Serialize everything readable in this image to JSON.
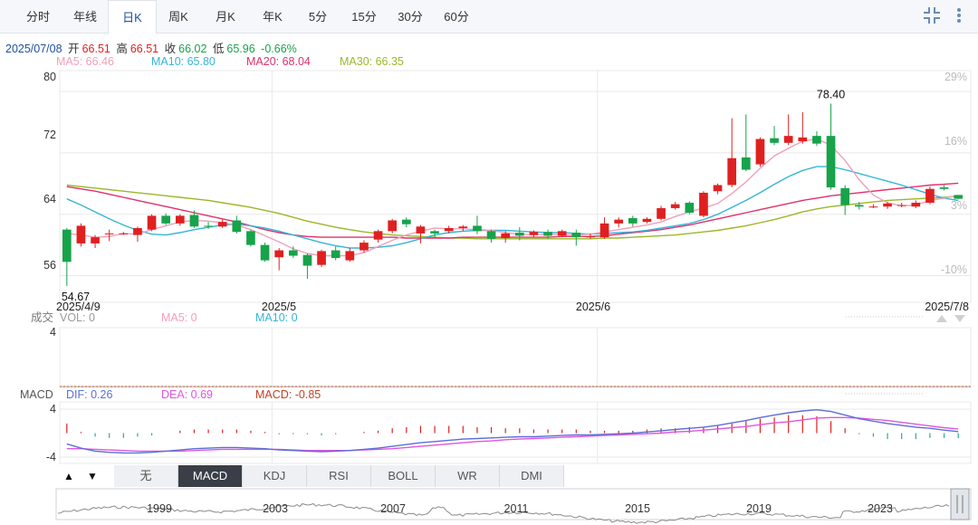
{
  "tabs": [
    {
      "label": "分时",
      "name": "tab-timeshare"
    },
    {
      "label": "年线",
      "name": "tab-yearline"
    },
    {
      "label": "日K",
      "name": "tab-day-k",
      "active": true
    },
    {
      "label": "周K",
      "name": "tab-week-k"
    },
    {
      "label": "月K",
      "name": "tab-month-k"
    },
    {
      "label": "年K",
      "name": "tab-year-k"
    },
    {
      "label": "5分",
      "name": "tab-5min"
    },
    {
      "label": "15分",
      "name": "tab-15min"
    },
    {
      "label": "30分",
      "name": "tab-30min"
    },
    {
      "label": "60分",
      "name": "tab-60min"
    }
  ],
  "controls": {
    "collapse_icon": "collapse-icon",
    "more_icon": "more-vertical-icon"
  },
  "info": {
    "date": "2025/07/08",
    "open_label": "开",
    "open": "66.51",
    "high_label": "高",
    "high": "66.51",
    "close_label": "收",
    "close": "66.02",
    "low_label": "低",
    "low": "65.96",
    "change": "-0.66%"
  },
  "ma_legend": {
    "ma5": "MA5: 66.46",
    "ma10": "MA10: 65.80",
    "ma20": "MA20: 68.04",
    "ma30": "MA30: 66.35"
  },
  "volume_legend": {
    "label": "成交",
    "vol": "VOL: 0",
    "ma5": "MA5: 0",
    "ma10": "MA10: 0",
    "ytick": "4"
  },
  "macd_legend": {
    "label": "MACD",
    "dif": "DIF: 0.26",
    "dea": "DEA: 0.69",
    "macd": "MACD: -0.85"
  },
  "indicator_tabs": [
    {
      "label": "无",
      "name": "indicator-tab-none"
    },
    {
      "label": "MACD",
      "name": "indicator-tab-macd",
      "active": true
    },
    {
      "label": "KDJ",
      "name": "indicator-tab-kdj"
    },
    {
      "label": "RSI",
      "name": "indicator-tab-rsi"
    },
    {
      "label": "BOLL",
      "name": "indicator-tab-boll"
    },
    {
      "label": "WR",
      "name": "indicator-tab-wr"
    },
    {
      "label": "DMI",
      "name": "indicator-tab-dmi"
    }
  ],
  "arrows": {
    "up": "▲",
    "down": "▼"
  },
  "colors": {
    "up": "#e02020",
    "down": "#16a34a",
    "ma5": "#f0a0b8",
    "ma10": "#35b5d8",
    "ma20": "#e0306a",
    "ma30": "#9ab828",
    "dif": "#5b6fd6",
    "dea": "#e055e0",
    "grid": "#e8e8e8",
    "nav": "#1f4fa0"
  },
  "chart_data": [
    {
      "type": "candlestick",
      "title": "",
      "ylim": [
        53,
        82
      ],
      "yticks": [
        "80",
        "72",
        "64",
        "56"
      ],
      "right_ticks": [
        "29%",
        "16%",
        "3%",
        "-10%"
      ],
      "xticks": [
        {
          "label": "2025/4/9",
          "index": 0
        },
        {
          "label": "2025/5",
          "index": 15
        },
        {
          "label": "2025/6",
          "index": 38
        },
        {
          "label": "2025/7/8",
          "index": 62
        }
      ],
      "annotations": [
        {
          "text": "78.40",
          "index": 54,
          "value": 78.4
        },
        {
          "text": "54.67",
          "index": 0,
          "value": 54.67
        }
      ],
      "candles": [
        [
          62.0,
          57.8,
          62.2,
          54.67
        ],
        [
          60.2,
          62.5,
          62.8,
          59.8
        ],
        [
          60.2,
          61.0,
          61.3,
          59.6
        ],
        [
          61.5,
          61.5,
          62.0,
          60.5
        ],
        [
          61.5,
          61.5,
          61.7,
          61.3
        ],
        [
          61.3,
          62.2,
          62.4,
          60.4
        ],
        [
          62.0,
          63.8,
          64.0,
          61.8
        ],
        [
          63.8,
          62.8,
          64.1,
          62.6
        ],
        [
          62.8,
          63.8,
          64.0,
          62.5
        ],
        [
          63.9,
          62.4,
          64.5,
          62.2
        ],
        [
          62.5,
          62.4,
          63.0,
          62.1
        ],
        [
          62.4,
          63.0,
          63.3,
          62.2
        ],
        [
          63.2,
          61.7,
          63.8,
          61.5
        ],
        [
          61.8,
          60.0,
          62.0,
          59.8
        ],
        [
          60.0,
          58.0,
          60.3,
          57.8
        ],
        [
          58.4,
          59.3,
          59.6,
          56.7
        ],
        [
          59.3,
          58.6,
          59.8,
          58.3
        ],
        [
          58.7,
          57.3,
          58.9,
          55.6
        ],
        [
          57.4,
          59.2,
          59.4,
          57.1
        ],
        [
          59.3,
          58.3,
          59.8,
          58.0
        ],
        [
          58.0,
          59.2,
          59.6,
          57.8
        ],
        [
          59.3,
          60.3,
          60.6,
          59.0
        ],
        [
          60.7,
          61.8,
          62.0,
          60.3
        ],
        [
          61.8,
          63.2,
          63.4,
          61.5
        ],
        [
          63.3,
          62.7,
          63.6,
          62.3
        ],
        [
          61.5,
          62.4,
          62.6,
          60.2
        ],
        [
          61.8,
          61.5,
          62.0,
          61.0
        ],
        [
          61.8,
          62.2,
          62.5,
          61.5
        ],
        [
          62.2,
          62.4,
          62.6,
          61.8
        ],
        [
          62.5,
          61.8,
          63.8,
          61.4
        ],
        [
          61.8,
          60.8,
          62.0,
          60.3
        ],
        [
          60.9,
          61.5,
          61.8,
          60.3
        ],
        [
          61.6,
          61.2,
          62.3,
          60.6
        ],
        [
          61.3,
          61.7,
          61.9,
          61.0
        ],
        [
          61.7,
          61.2,
          62.0,
          60.8
        ],
        [
          61.2,
          61.8,
          62.0,
          61.0
        ],
        [
          61.6,
          61.0,
          62.0,
          59.9
        ],
        [
          61.0,
          61.1,
          61.5,
          60.8
        ],
        [
          61.0,
          62.8,
          63.6,
          60.8
        ],
        [
          62.8,
          63.3,
          63.6,
          62.3
        ],
        [
          63.5,
          62.8,
          63.8,
          62.4
        ],
        [
          63.0,
          63.4,
          63.6,
          62.8
        ],
        [
          63.4,
          64.8,
          65.1,
          63.2
        ],
        [
          64.8,
          65.3,
          65.6,
          64.6
        ],
        [
          65.5,
          64.2,
          65.7,
          64.0
        ],
        [
          63.8,
          66.8,
          67.0,
          63.6
        ],
        [
          67.0,
          67.8,
          68.0,
          66.6
        ],
        [
          67.8,
          71.3,
          76.5,
          67.5
        ],
        [
          71.4,
          69.8,
          77.0,
          69.6
        ],
        [
          70.5,
          73.8,
          74.0,
          70.2
        ],
        [
          73.9,
          73.3,
          75.5,
          73.0
        ],
        [
          73.3,
          74.2,
          77.0,
          73.0
        ],
        [
          73.5,
          74.0,
          77.3,
          73.2
        ],
        [
          74.2,
          73.2,
          74.8,
          72.9
        ],
        [
          74.2,
          67.5,
          78.4,
          67.2
        ],
        [
          67.4,
          65.2,
          67.8,
          63.9
        ],
        [
          65.2,
          65.0,
          65.6,
          64.6
        ],
        [
          65.0,
          65.0,
          65.3,
          64.8
        ],
        [
          65.0,
          65.4,
          65.6,
          64.7
        ],
        [
          65.2,
          65.2,
          65.5,
          64.9
        ],
        [
          65.0,
          65.5,
          65.8,
          64.8
        ],
        [
          65.5,
          67.3,
          67.6,
          65.3
        ],
        [
          67.5,
          67.3,
          67.8,
          67.1
        ],
        [
          66.51,
          66.02,
          66.51,
          65.96
        ]
      ],
      "ma5": [
        61.5,
        61.3,
        61.0,
        61.1,
        61.5,
        61.4,
        62.0,
        62.5,
        63.0,
        63.2,
        63.1,
        62.9,
        62.6,
        62.0,
        61.2,
        60.4,
        59.5,
        58.9,
        58.6,
        58.6,
        58.6,
        59.0,
        59.8,
        60.6,
        61.3,
        61.8,
        62.2,
        62.1,
        62.1,
        62.0,
        61.9,
        61.6,
        61.4,
        61.3,
        61.4,
        61.3,
        61.3,
        61.4,
        61.7,
        62.0,
        62.3,
        62.6,
        63.0,
        63.7,
        64.3,
        64.8,
        65.4,
        66.7,
        68.2,
        70.0,
        71.6,
        72.6,
        73.5,
        73.8,
        73.0,
        71.0,
        68.5,
        66.5,
        65.5,
        65.1,
        65.2,
        65.8,
        66.1,
        66.46
      ],
      "ma10": [
        66.0,
        65.2,
        64.3,
        63.4,
        62.6,
        61.9,
        61.4,
        61.3,
        61.6,
        62.0,
        62.3,
        62.6,
        62.7,
        62.5,
        62.2,
        61.8,
        61.3,
        60.8,
        60.3,
        59.9,
        59.6,
        59.6,
        59.7,
        59.9,
        60.3,
        60.8,
        61.3,
        61.6,
        61.8,
        61.9,
        61.9,
        61.9,
        61.8,
        61.7,
        61.6,
        61.6,
        61.5,
        61.4,
        61.5,
        61.6,
        61.7,
        61.9,
        62.2,
        62.5,
        62.8,
        63.3,
        64.0,
        64.9,
        65.8,
        66.8,
        67.9,
        68.9,
        69.7,
        70.2,
        70.2,
        69.8,
        69.3,
        68.8,
        68.3,
        67.8,
        67.2,
        66.6,
        66.1,
        65.8
      ],
      "ma20": [
        67.6,
        67.3,
        67.0,
        66.6,
        66.2,
        65.8,
        65.4,
        65.0,
        64.6,
        64.2,
        63.8,
        63.4,
        63.0,
        62.5,
        62.0,
        61.6,
        61.3,
        61.1,
        61.0,
        61.0,
        61.0,
        61.0,
        61.0,
        61.0,
        60.9,
        60.9,
        60.9,
        60.9,
        61.0,
        61.0,
        61.0,
        61.0,
        61.0,
        61.0,
        61.0,
        61.1,
        61.1,
        61.1,
        61.2,
        61.4,
        61.6,
        61.8,
        62.0,
        62.3,
        62.6,
        63.0,
        63.4,
        63.8,
        64.2,
        64.6,
        65.0,
        65.4,
        65.8,
        66.1,
        66.4,
        66.6,
        66.8,
        67.0,
        67.2,
        67.4,
        67.6,
        67.8,
        67.9,
        68.04
      ],
      "ma30": [
        67.8,
        67.6,
        67.4,
        67.2,
        67.0,
        66.8,
        66.6,
        66.4,
        66.2,
        66.0,
        65.8,
        65.5,
        65.2,
        64.9,
        64.5,
        64.1,
        63.6,
        63.1,
        62.7,
        62.3,
        62.0,
        61.7,
        61.5,
        61.3,
        61.2,
        61.1,
        61.0,
        60.9,
        60.9,
        60.8,
        60.8,
        60.8,
        60.8,
        60.8,
        60.8,
        60.8,
        60.8,
        60.8,
        60.9,
        60.9,
        61.0,
        61.1,
        61.2,
        61.3,
        61.5,
        61.7,
        61.9,
        62.2,
        62.5,
        62.9,
        63.3,
        63.8,
        64.3,
        64.7,
        65.0,
        65.2,
        65.4,
        65.6,
        65.8,
        65.9,
        66.0,
        66.1,
        66.2,
        66.35
      ]
    },
    {
      "type": "bar",
      "title": "",
      "series": [
        {
          "name": "VOL",
          "values": []
        }
      ],
      "ylim": [
        0,
        4
      ]
    },
    {
      "type": "line",
      "title": "",
      "ylim": [
        -5,
        5
      ],
      "yticks": [
        "4",
        "-4"
      ],
      "dif": [
        -1.8,
        -2.5,
        -3.0,
        -3.2,
        -3.3,
        -3.3,
        -3.2,
        -3.0,
        -2.8,
        -2.6,
        -2.5,
        -2.4,
        -2.4,
        -2.5,
        -2.6,
        -2.8,
        -2.9,
        -3.0,
        -3.1,
        -3.0,
        -2.9,
        -2.7,
        -2.5,
        -2.2,
        -1.9,
        -1.6,
        -1.4,
        -1.2,
        -1.0,
        -0.9,
        -0.8,
        -0.7,
        -0.6,
        -0.6,
        -0.5,
        -0.4,
        -0.3,
        -0.3,
        -0.2,
        -0.1,
        0.0,
        0.2,
        0.4,
        0.6,
        0.8,
        1.0,
        1.3,
        1.7,
        2.1,
        2.6,
        3.0,
        3.4,
        3.7,
        3.9,
        3.6,
        3.0,
        2.4,
        2.0,
        1.6,
        1.3,
        1.0,
        0.8,
        0.5,
        0.26
      ],
      "dea": [
        -2.6,
        -2.6,
        -2.7,
        -2.8,
        -2.9,
        -3.0,
        -3.0,
        -3.0,
        -3.0,
        -2.9,
        -2.8,
        -2.7,
        -2.7,
        -2.7,
        -2.7,
        -2.7,
        -2.8,
        -2.9,
        -2.9,
        -2.9,
        -2.9,
        -2.8,
        -2.7,
        -2.6,
        -2.4,
        -2.2,
        -2.0,
        -1.8,
        -1.6,
        -1.4,
        -1.3,
        -1.1,
        -1.0,
        -0.9,
        -0.8,
        -0.7,
        -0.6,
        -0.5,
        -0.4,
        -0.3,
        -0.2,
        -0.1,
        0.0,
        0.2,
        0.3,
        0.5,
        0.7,
        0.9,
        1.1,
        1.4,
        1.7,
        1.9,
        2.2,
        2.5,
        2.6,
        2.6,
        2.5,
        2.3,
        2.1,
        1.8,
        1.5,
        1.2,
        0.9,
        0.69
      ],
      "macd": [
        1.6,
        0.2,
        -0.6,
        -0.8,
        -0.8,
        -0.6,
        -0.4,
        0.0,
        0.4,
        0.6,
        0.6,
        0.6,
        0.6,
        0.4,
        0.2,
        -0.2,
        -0.2,
        -0.2,
        -0.4,
        -0.2,
        0.0,
        0.2,
        0.4,
        0.8,
        1.0,
        1.2,
        1.2,
        1.2,
        1.2,
        1.0,
        1.0,
        0.8,
        0.8,
        0.6,
        0.6,
        0.6,
        0.6,
        0.4,
        0.4,
        0.4,
        0.4,
        0.6,
        0.8,
        0.8,
        1.0,
        1.0,
        1.2,
        1.6,
        2.0,
        2.4,
        2.6,
        3.0,
        3.0,
        2.8,
        2.0,
        0.8,
        -0.2,
        -0.6,
        -1.0,
        -1.0,
        -1.0,
        -0.8,
        -0.8,
        -0.85
      ]
    }
  ],
  "navigator": {
    "year_labels": [
      "1999",
      "2003",
      "2007",
      "2011",
      "2015",
      "2019",
      "2023"
    ]
  }
}
